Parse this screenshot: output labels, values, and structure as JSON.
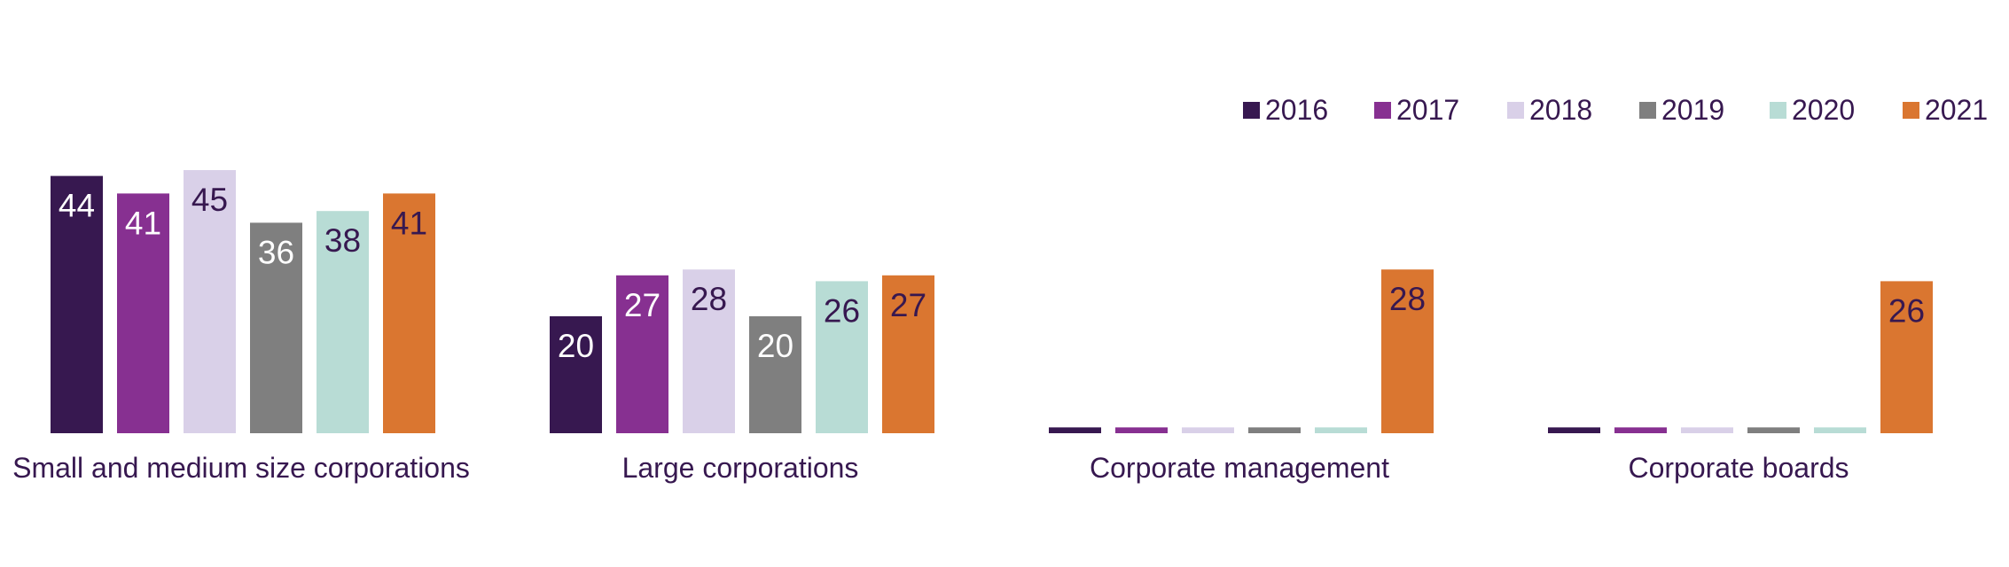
{
  "chart_data": {
    "type": "bar",
    "title": "",
    "xlabel": "",
    "ylabel": "",
    "ylim": [
      0,
      50
    ],
    "grid": false,
    "legend_position": "top-right",
    "categories": [
      "Small and medium size corporations",
      "Large corporations",
      "Corporate management",
      "Corporate boards"
    ],
    "series": [
      {
        "name": "2016",
        "color": "#371850",
        "label_color": "#ffffff",
        "values": [
          44,
          20,
          1,
          1
        ]
      },
      {
        "name": "2017",
        "color": "#873091",
        "label_color": "#ffffff",
        "values": [
          41,
          27,
          1,
          1
        ]
      },
      {
        "name": "2018",
        "color": "#d9d0e8",
        "label_color": "#371850",
        "values": [
          45,
          28,
          1,
          1
        ]
      },
      {
        "name": "2019",
        "color": "#7f7f7f",
        "label_color": "#ffffff",
        "values": [
          36,
          20,
          1,
          1
        ]
      },
      {
        "name": "2020",
        "color": "#b8dcd5",
        "label_color": "#371850",
        "values": [
          38,
          26,
          1,
          1
        ]
      },
      {
        "name": "2021",
        "color": "#da7630",
        "label_color": "#371850",
        "values": [
          41,
          27,
          28,
          26
        ]
      }
    ],
    "data_labels": [
      [
        "44",
        "20",
        "",
        ""
      ],
      [
        "41",
        "27",
        "",
        ""
      ],
      [
        "45",
        "28",
        "",
        ""
      ],
      [
        "36",
        "20",
        "",
        ""
      ],
      [
        "38",
        "26",
        "",
        ""
      ],
      [
        "41",
        "27",
        "28",
        "26"
      ]
    ],
    "text_color": "#371850"
  }
}
